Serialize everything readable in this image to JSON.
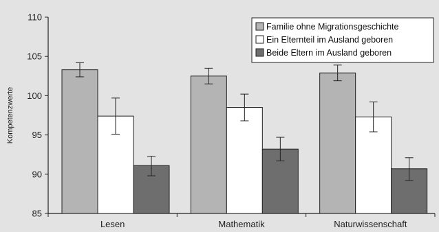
{
  "chart_data": {
    "type": "bar",
    "title": "",
    "xlabel": "",
    "ylabel": "Kompetenzwerte",
    "ylim": [
      85,
      110
    ],
    "yticks": [
      85,
      90,
      95,
      100,
      105,
      110
    ],
    "grid": false,
    "legend_position": "top-right",
    "categories": [
      "Lesen",
      "Mathematik",
      "Naturwissenschaft"
    ],
    "series": [
      {
        "name": "Familie ohne Migrationsgeschichte",
        "color": "#b4b4b4",
        "values": [
          103.3,
          102.5,
          102.9
        ],
        "error_low": [
          102.4,
          101.5,
          101.9
        ],
        "error_high": [
          104.2,
          103.5,
          103.9
        ]
      },
      {
        "name": "Ein Elternteil im Ausland geboren",
        "color": "#ffffff",
        "values": [
          97.4,
          98.5,
          97.3
        ],
        "error_low": [
          95.1,
          96.8,
          95.4
        ],
        "error_high": [
          99.7,
          100.2,
          99.2
        ]
      },
      {
        "name": "Beide Eltern im Ausland geboren",
        "color": "#6e6e6e",
        "values": [
          91.1,
          93.2,
          90.7
        ],
        "error_low": [
          89.8,
          91.7,
          89.2
        ],
        "error_high": [
          92.3,
          94.7,
          92.1
        ]
      }
    ]
  }
}
